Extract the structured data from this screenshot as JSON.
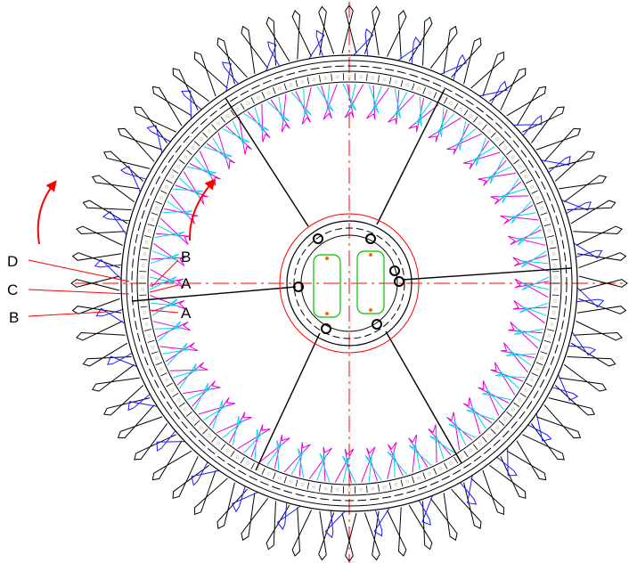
{
  "diagram": {
    "labels": {
      "left_d": "D",
      "left_c": "C",
      "left_b": "B",
      "inner_b": "B",
      "inner_a_upper": "A",
      "inner_a_lower": "A"
    },
    "colors": {
      "outline": "#000000",
      "centerline": "#ff0000",
      "arrow": "#ff0000",
      "blade_blue": "#1a1aff",
      "blade_magenta": "#e000e0",
      "blade_cyan": "#00d8e8",
      "hub_slot": "#00c000",
      "slot_fill": "#ffffcc"
    },
    "icons": {
      "rotation": "red-curved-arrow"
    }
  }
}
